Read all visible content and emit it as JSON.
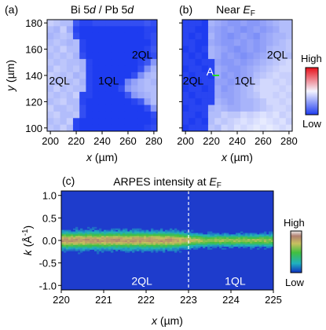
{
  "chart_data": [
    {
      "type": "heatmap",
      "panel_label": "(a)",
      "title_parts": [
        "Bi 5",
        "d",
        " / Pb 5",
        "d"
      ],
      "xlabel_parts": [
        "x",
        " (µm)"
      ],
      "ylabel_parts": [
        "y",
        " (µm)"
      ],
      "xticks": [
        "200",
        "220",
        "240",
        "260",
        "280"
      ],
      "yticks": [
        "100",
        "120",
        "140",
        "160",
        "180"
      ],
      "xlim": [
        197.5,
        282.5
      ],
      "ylim": [
        97.5,
        182.5
      ],
      "step": 5,
      "annotations": [
        {
          "text": "2QL",
          "x": 207,
          "y": 136
        },
        {
          "text": "1QL",
          "x": 245,
          "y": 136
        },
        {
          "text": "2QL",
          "x": 271,
          "y": 156
        }
      ],
      "grid": [
        [
          0.2,
          0.25,
          0.3,
          0.3,
          0.85,
          0.95,
          0.95,
          0.9,
          0.9,
          0.9,
          0.9,
          0.9,
          0.9,
          0.9,
          0.9,
          0.85,
          0.9
        ],
        [
          0.3,
          0.35,
          0.2,
          0.4,
          0.95,
          1.0,
          1.0,
          1.0,
          1.0,
          1.0,
          1.0,
          1.0,
          1.0,
          1.0,
          1.0,
          0.95,
          0.95
        ],
        [
          0.35,
          0.3,
          0.25,
          0.3,
          0.9,
          1.0,
          1.0,
          1.0,
          1.0,
          1.0,
          1.0,
          1.0,
          1.0,
          1.0,
          1.0,
          0.95,
          0.9
        ],
        [
          0.3,
          0.25,
          0.3,
          0.35,
          0.3,
          0.95,
          1.0,
          1.0,
          1.0,
          1.0,
          1.0,
          1.0,
          1.0,
          1.0,
          1.0,
          1.0,
          0.9
        ],
        [
          0.25,
          0.3,
          0.2,
          0.3,
          0.3,
          0.95,
          1.0,
          1.0,
          1.0,
          1.0,
          1.0,
          1.0,
          1.0,
          1.0,
          1.0,
          0.95,
          0.85
        ],
        [
          0.3,
          0.25,
          0.3,
          0.25,
          0.35,
          0.9,
          1.0,
          1.0,
          1.0,
          1.0,
          1.0,
          1.0,
          1.0,
          1.0,
          1.0,
          1.0,
          0.9
        ],
        [
          0.25,
          0.3,
          0.25,
          0.3,
          0.3,
          0.35,
          0.95,
          1.0,
          1.0,
          1.0,
          1.0,
          1.0,
          1.0,
          1.0,
          0.95,
          0.85,
          0.5
        ],
        [
          0.3,
          0.2,
          0.25,
          0.3,
          0.25,
          0.35,
          0.95,
          1.0,
          1.0,
          1.0,
          1.0,
          1.0,
          1.0,
          1.0,
          0.9,
          0.55,
          0.35
        ],
        [
          0.2,
          0.25,
          0.3,
          0.25,
          0.35,
          0.3,
          0.95,
          1.0,
          1.0,
          1.0,
          1.0,
          1.0,
          1.0,
          0.9,
          0.55,
          0.35,
          0.3
        ],
        [
          0.25,
          0.3,
          0.2,
          0.3,
          0.25,
          0.35,
          0.95,
          1.0,
          1.0,
          1.0,
          1.0,
          1.0,
          0.6,
          0.45,
          0.35,
          0.3,
          0.35
        ],
        [
          0.3,
          0.2,
          0.3,
          0.25,
          0.3,
          0.3,
          0.95,
          1.0,
          1.0,
          1.0,
          1.0,
          0.9,
          0.5,
          0.4,
          0.35,
          0.3,
          0.3
        ],
        [
          0.25,
          0.3,
          0.25,
          0.3,
          0.2,
          0.95,
          0.95,
          1.0,
          1.0,
          1.0,
          1.0,
          1.0,
          0.85,
          0.5,
          0.4,
          0.35,
          0.3
        ],
        [
          0.3,
          0.25,
          0.2,
          0.3,
          0.3,
          0.95,
          1.0,
          1.0,
          1.0,
          1.0,
          1.0,
          1.0,
          1.0,
          0.95,
          0.85,
          0.45,
          0.3
        ],
        [
          0.2,
          0.3,
          0.3,
          0.25,
          0.3,
          0.9,
          1.0,
          1.0,
          1.0,
          1.0,
          1.0,
          1.0,
          1.0,
          1.0,
          1.0,
          0.9,
          0.5
        ],
        [
          0.25,
          0.2,
          0.3,
          0.3,
          0.25,
          0.9,
          1.0,
          1.0,
          1.0,
          1.0,
          1.0,
          1.0,
          1.0,
          1.0,
          1.0,
          1.0,
          0.9
        ],
        [
          0.3,
          0.25,
          0.3,
          0.2,
          0.95,
          1.0,
          1.0,
          1.0,
          1.0,
          1.0,
          1.0,
          1.0,
          1.0,
          1.0,
          1.0,
          1.0,
          0.95
        ],
        [
          0.25,
          0.3,
          0.2,
          0.3,
          0.95,
          1.0,
          1.0,
          1.0,
          1.0,
          1.0,
          1.0,
          1.0,
          1.0,
          1.0,
          1.0,
          0.95,
          0.9
        ]
      ]
    },
    {
      "type": "heatmap",
      "panel_label": "(b)",
      "title_parts": [
        "Near ",
        "E",
        "F"
      ],
      "xlabel_parts": [
        "x",
        " (µm)"
      ],
      "xticks": [
        "200",
        "220",
        "240",
        "260",
        "280"
      ],
      "yticks": [
        "100",
        "120",
        "140",
        "160",
        "180"
      ],
      "xlim": [
        197.5,
        282.5
      ],
      "ylim": [
        97.5,
        182.5
      ],
      "step": 5,
      "annotations": [
        {
          "text": "2QL",
          "x": 206,
          "y": 136
        },
        {
          "text": "1QL",
          "x": 246,
          "y": 136
        },
        {
          "text": "2QL",
          "x": 271,
          "y": 156
        },
        {
          "text": "A",
          "x": 219,
          "y": 143
        }
      ],
      "marker": {
        "x": [
          221,
          226
        ],
        "y": 140,
        "color": "#22dd22"
      },
      "grid": [
        [
          0.95,
          0.95,
          0.95,
          1.0,
          0.35,
          0.4,
          0.45,
          0.5,
          0.5,
          0.45,
          0.5,
          0.5,
          0.45,
          0.4,
          0.35,
          0.3,
          0.3
        ],
        [
          0.95,
          0.95,
          1.0,
          1.0,
          0.4,
          0.45,
          0.5,
          0.45,
          0.5,
          0.55,
          0.5,
          0.45,
          0.5,
          0.45,
          0.4,
          0.3,
          0.3
        ],
        [
          0.95,
          1.0,
          0.95,
          1.0,
          0.35,
          0.45,
          0.5,
          0.55,
          0.5,
          0.45,
          0.5,
          0.55,
          0.45,
          0.4,
          0.35,
          0.35,
          0.3
        ],
        [
          0.95,
          0.95,
          1.0,
          1.0,
          0.4,
          0.45,
          0.5,
          0.5,
          0.45,
          0.5,
          0.45,
          0.5,
          0.45,
          0.4,
          0.35,
          0.3,
          0.25
        ],
        [
          1.0,
          0.95,
          1.0,
          0.95,
          0.35,
          0.4,
          0.45,
          0.5,
          0.55,
          0.5,
          0.45,
          0.5,
          0.45,
          0.35,
          0.3,
          0.3,
          0.25
        ],
        [
          0.95,
          1.0,
          0.95,
          1.0,
          0.35,
          0.4,
          0.5,
          0.45,
          0.5,
          0.55,
          0.5,
          0.45,
          0.4,
          0.35,
          0.3,
          0.25,
          0.3
        ],
        [
          0.95,
          0.95,
          1.0,
          0.95,
          0.95,
          0.45,
          0.5,
          0.5,
          0.45,
          0.5,
          0.45,
          0.4,
          0.35,
          0.3,
          0.25,
          0.2,
          0.15
        ],
        [
          1.0,
          0.95,
          0.95,
          1.0,
          0.95,
          0.4,
          0.45,
          0.5,
          0.5,
          0.45,
          0.4,
          0.35,
          0.3,
          0.25,
          0.2,
          0.15,
          0.15
        ],
        [
          0.95,
          1.0,
          0.95,
          0.95,
          1.0,
          0.4,
          0.5,
          0.45,
          0.5,
          0.45,
          0.4,
          0.3,
          0.25,
          0.2,
          0.15,
          0.2,
          0.2
        ],
        [
          0.95,
          0.95,
          1.0,
          0.95,
          0.95,
          0.45,
          0.45,
          0.5,
          0.45,
          0.4,
          0.35,
          0.25,
          0.15,
          0.15,
          0.2,
          0.15,
          0.2
        ],
        [
          1.0,
          0.95,
          0.95,
          1.0,
          0.95,
          0.4,
          0.5,
          0.45,
          0.4,
          0.35,
          0.3,
          0.2,
          0.15,
          0.15,
          0.15,
          0.2,
          0.15
        ],
        [
          0.95,
          1.0,
          0.95,
          0.95,
          0.95,
          0.4,
          0.45,
          0.45,
          0.4,
          0.35,
          0.3,
          0.25,
          0.15,
          0.15,
          0.2,
          0.15,
          0.2
        ],
        [
          0.95,
          0.95,
          1.0,
          0.95,
          0.95,
          0.35,
          0.4,
          0.45,
          0.4,
          0.35,
          0.35,
          0.3,
          0.25,
          0.15,
          0.15,
          0.2,
          0.15
        ],
        [
          1.0,
          0.95,
          0.95,
          0.95,
          0.35,
          0.3,
          0.35,
          0.4,
          0.4,
          0.35,
          0.35,
          0.3,
          0.25,
          0.2,
          0.15,
          0.15,
          0.2
        ],
        [
          0.95,
          0.95,
          1.0,
          0.95,
          0.3,
          0.3,
          0.2,
          0.25,
          0.25,
          0.15,
          0.2,
          0.15,
          0.1,
          0.15,
          0.1,
          0.2,
          0.15
        ],
        [
          0.95,
          1.0,
          0.95,
          1.0,
          0.3,
          0.2,
          0.25,
          0.2,
          0.15,
          0.1,
          0.15,
          0.1,
          0.05,
          0.1,
          0.15,
          0.1,
          0.2
        ],
        [
          1.0,
          0.95,
          0.95,
          0.95,
          0.25,
          0.3,
          0.15,
          0.2,
          0.1,
          0.15,
          0.1,
          0.05,
          0.1,
          0.05,
          0.1,
          0.15,
          0.1
        ]
      ]
    },
    {
      "type": "heatmap",
      "panel_label": "(c)",
      "title_parts": [
        "ARPES intensity at ",
        "E",
        "F"
      ],
      "xlabel_parts": [
        "x",
        " (µm)"
      ],
      "ylabel_parts": [
        "k",
        " (Å",
        "-1",
        ")"
      ],
      "xticks": [
        "220",
        "221",
        "222",
        "223",
        "224",
        "225"
      ],
      "yticks": [
        "-1.0",
        "-0.5",
        "0.0",
        "0.5",
        "1.0"
      ],
      "xlim": [
        220,
        225
      ],
      "ylim": [
        -1.1,
        1.1
      ],
      "dashed_line_x": 223,
      "annotations": [
        {
          "text": "2QL",
          "x": 221.9,
          "y": -0.9
        },
        {
          "text": "1QL",
          "x": 224.1,
          "y": -0.9
        }
      ],
      "band": {
        "k_center": 0.0,
        "left_half_width": 0.2,
        "right_half_width": 0.14,
        "left_peak": 0.82,
        "right_peak": 0.62
      }
    }
  ],
  "colorbar_ab": {
    "high_label": "High",
    "low_label": "Low"
  },
  "colorbar_c": {
    "high_label": "High",
    "low_label": "Low"
  },
  "colors": {
    "marker": "#22dd22",
    "dashed_line": "#ffffff"
  }
}
